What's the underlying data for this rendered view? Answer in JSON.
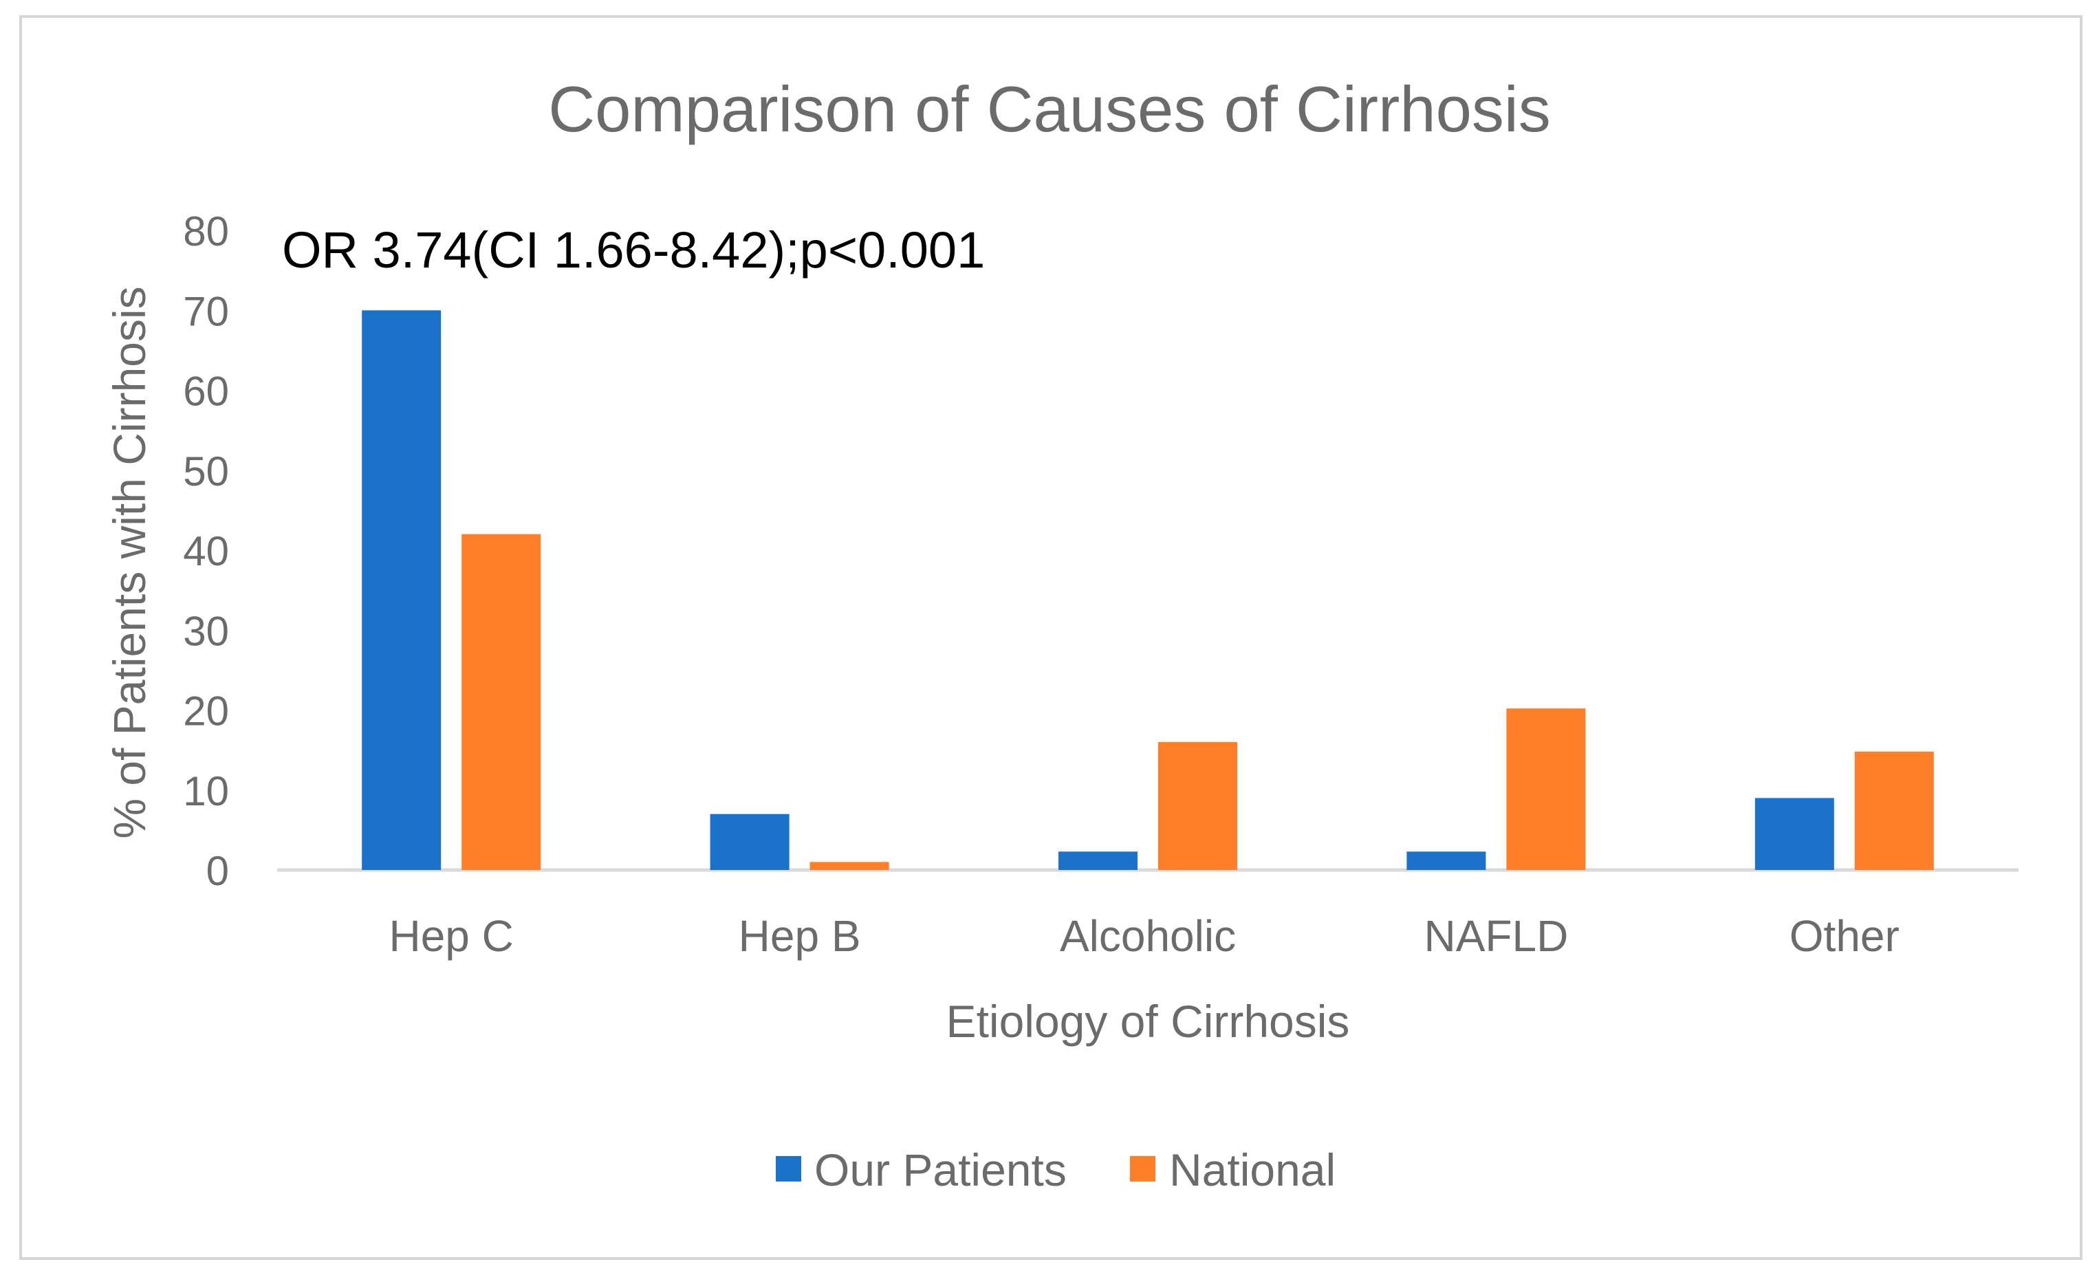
{
  "chart_data": {
    "type": "bar",
    "title": "Comparison of Causes of Cirrhosis",
    "annotation": "OR 3.74(CI 1.66-8.42);p<0.001",
    "xlabel": "Etiology of Cirrhosis",
    "ylabel": "% of Patients with Cirrhosis",
    "categories": [
      "Hep C",
      "Hep B",
      "Alcoholic",
      "NAFLD",
      "Other"
    ],
    "ylim": [
      0,
      80
    ],
    "yticks": [
      "0",
      "10",
      "20",
      "30",
      "40",
      "50",
      "60",
      "70",
      "80"
    ],
    "grid": false,
    "legend_position": "bottom",
    "series": [
      {
        "name": "Our Patients",
        "color": "#1a72c9",
        "values": [
          70,
          7,
          2.3,
          2.3,
          9
        ]
      },
      {
        "name": "National",
        "color": "#fe7f28",
        "values": [
          42,
          1,
          16,
          20.2,
          14.8
        ]
      }
    ]
  }
}
